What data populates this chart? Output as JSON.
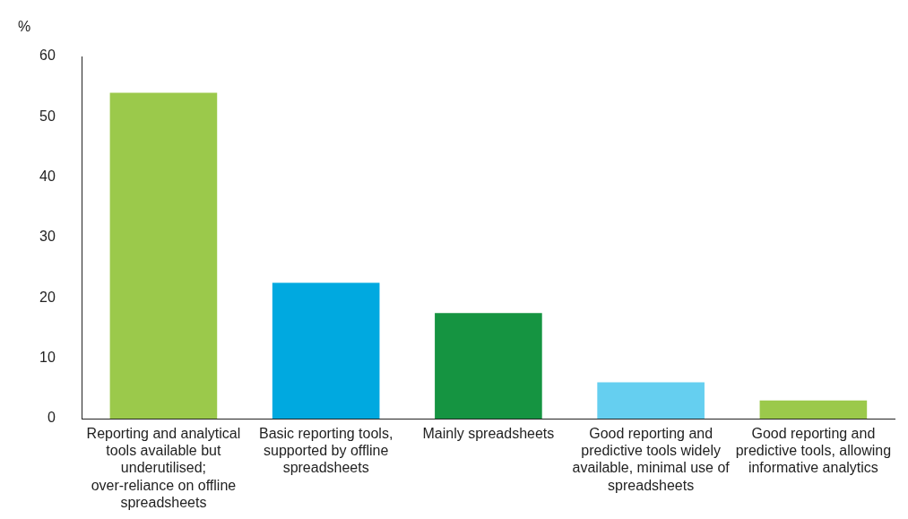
{
  "chart_data": {
    "type": "bar",
    "ylabel": "%",
    "categories": [
      "Reporting and analytical tools available but underutilised; over-reliance on offline spreadsheets",
      "Basic reporting tools, supported by offline spreadsheets",
      "Mainly spreadsheets",
      "Good reporting and predictive tools widely available, minimal use of spreadsheets",
      "Good reporting and predictive tools, allowing informative analytics"
    ],
    "values": [
      54,
      22.5,
      17.5,
      6,
      3
    ],
    "colors": [
      "#9bc94b",
      "#00a9e0",
      "#159441",
      "#65cff0",
      "#9bc94b"
    ],
    "ylim": [
      0,
      60
    ],
    "yticks": [
      0,
      10,
      20,
      30,
      40,
      50,
      60
    ],
    "grid": false,
    "legend": false
  }
}
